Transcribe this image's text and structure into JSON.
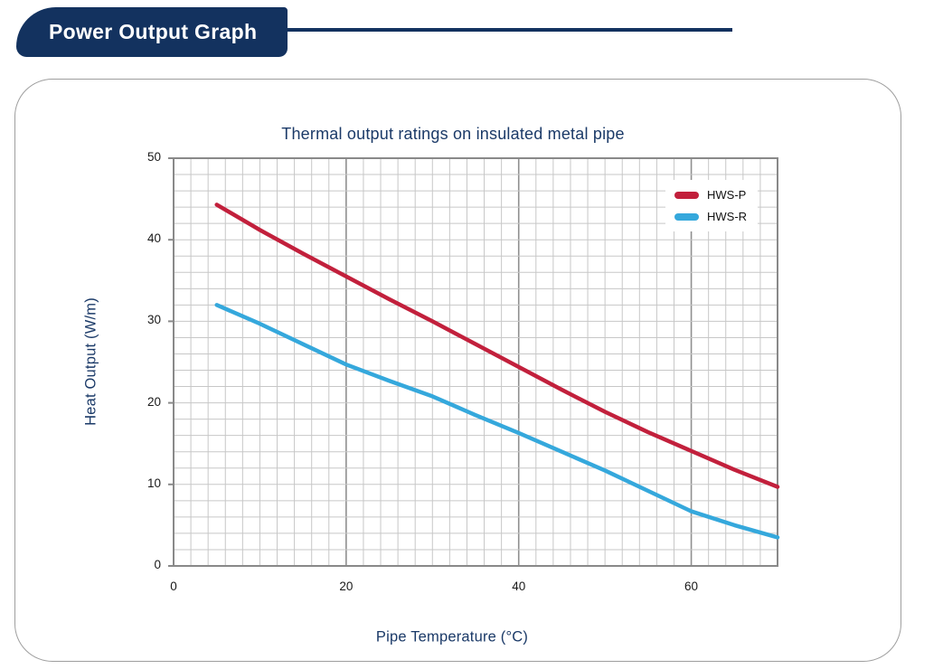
{
  "header": {
    "title": "Power Output Graph"
  },
  "chart_data": {
    "type": "line",
    "title": "Thermal output ratings on insulated metal pipe",
    "xlabel": "Pipe Temperature (°C)",
    "ylabel": "Heat Output (W/m)",
    "xlim": [
      0,
      70
    ],
    "ylim": [
      0,
      50
    ],
    "x_ticks": [
      0,
      20,
      40,
      60
    ],
    "y_ticks": [
      0,
      10,
      20,
      30,
      40,
      50
    ],
    "minor_step_x": 2,
    "minor_step_y": 2,
    "grid": "minor and major gridlines, graph-paper style",
    "legend_position": "top-right",
    "series": [
      {
        "name": "HWS-P",
        "color": "#c2203c",
        "x": [
          5,
          10,
          15,
          20,
          25,
          30,
          35,
          40,
          45,
          50,
          55,
          60,
          65,
          70
        ],
        "y": [
          44.3,
          41.2,
          38.3,
          35.5,
          32.7,
          30.0,
          27.2,
          24.4,
          21.6,
          18.9,
          16.4,
          14.1,
          11.8,
          9.7
        ]
      },
      {
        "name": "HWS-R",
        "color": "#35a8dc",
        "x": [
          5,
          10,
          15,
          20,
          25,
          30,
          35,
          40,
          45,
          50,
          55,
          60,
          65,
          70
        ],
        "y": [
          32.0,
          29.7,
          27.2,
          24.7,
          22.7,
          20.8,
          18.5,
          16.3,
          14.0,
          11.7,
          9.2,
          6.7,
          5.0,
          3.5
        ]
      }
    ]
  },
  "colors": {
    "header_navy": "#13325f",
    "title_blue": "#1b3a68",
    "minor_grid": "#c7c7c7",
    "major_grid": "#8f8f8f",
    "plot_border": "#898989",
    "series_red": "#c2203c",
    "series_blue": "#35a8dc"
  }
}
